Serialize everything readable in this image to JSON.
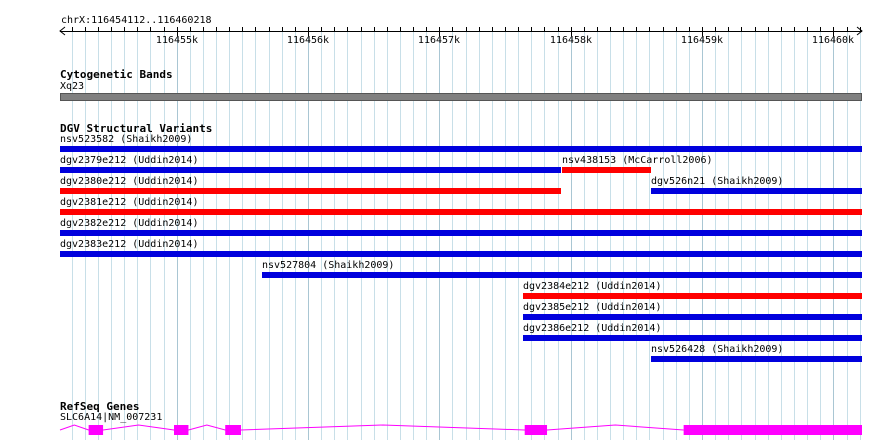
{
  "view": {
    "start": 116454112,
    "end": 116460218,
    "location_label": "chrX:116454112..116460218"
  },
  "ruler": {
    "ticks": [
      {
        "pos": 116455000,
        "label": "116455k"
      },
      {
        "pos": 116456000,
        "label": "116456k"
      },
      {
        "pos": 116457000,
        "label": "116457k"
      },
      {
        "pos": 116458000,
        "label": "116458k"
      },
      {
        "pos": 116459000,
        "label": "116459k"
      },
      {
        "pos": 116460000,
        "label": "116460k"
      }
    ]
  },
  "cytobands": {
    "title": "Cytogenetic Bands",
    "band_label": "Xq23",
    "band_color": "#808080"
  },
  "dgv": {
    "title": "DGV Structural Variants",
    "colors": {
      "gain": "#ff0000",
      "loss": "#0000dd"
    },
    "features": [
      {
        "label": "nsv523582 (Shaikh2009)",
        "start": 116454112,
        "end": 116460218,
        "type": "loss",
        "row": 0
      },
      {
        "label": "dgv2379e212 (Uddin2014)",
        "start": 116454112,
        "end": 116457925,
        "type": "loss",
        "row": 1
      },
      {
        "label": "nsv438153 (McCarroll2006)",
        "start": 116457935,
        "end": 116458615,
        "type": "gain",
        "row": 1
      },
      {
        "label": "dgv2380e212 (Uddin2014)",
        "start": 116454112,
        "end": 116457925,
        "type": "gain",
        "row": 2
      },
      {
        "label": "dgv526n21 (Shaikh2009)",
        "start": 116458615,
        "end": 116460218,
        "type": "loss",
        "row": 2
      },
      {
        "label": "dgv2381e212 (Uddin2014)",
        "start": 116454112,
        "end": 116460218,
        "type": "gain",
        "row": 3
      },
      {
        "label": "dgv2382e212 (Uddin2014)",
        "start": 116454112,
        "end": 116460218,
        "type": "loss",
        "row": 4
      },
      {
        "label": "dgv2383e212 (Uddin2014)",
        "start": 116454112,
        "end": 116460218,
        "type": "loss",
        "row": 5
      },
      {
        "label": "nsv527804 (Shaikh2009)",
        "start": 116455650,
        "end": 116460218,
        "type": "loss",
        "row": 6
      },
      {
        "label": "dgv2384e212 (Uddin2014)",
        "start": 116457640,
        "end": 116460218,
        "type": "gain",
        "row": 7
      },
      {
        "label": "dgv2385e212 (Uddin2014)",
        "start": 116457640,
        "end": 116460218,
        "type": "loss",
        "row": 8
      },
      {
        "label": "dgv2386e212 (Uddin2014)",
        "start": 116457640,
        "end": 116460218,
        "type": "loss",
        "row": 9
      },
      {
        "label": "nsv526428 (Shaikh2009)",
        "start": 116458615,
        "end": 116460218,
        "type": "loss",
        "row": 10
      }
    ]
  },
  "refseq": {
    "title": "RefSeq Genes",
    "gene_label": "SLC6A14|NM_007231",
    "color": "#ff00ff",
    "exons": [
      {
        "start": 116454330,
        "end": 116454440
      },
      {
        "start": 116454980,
        "end": 116455090
      },
      {
        "start": 116455370,
        "end": 116455490
      },
      {
        "start": 116457650,
        "end": 116457820
      },
      {
        "start": 116458860,
        "end": 116460218
      }
    ]
  }
}
